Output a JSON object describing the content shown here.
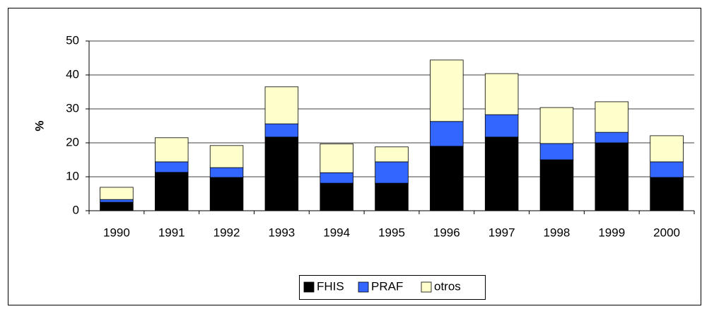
{
  "chart_data": {
    "type": "bar",
    "stacked": true,
    "y_label": "%",
    "categories": [
      "1990",
      "1991",
      "1992",
      "1993",
      "1994",
      "1995",
      "1996",
      "1997",
      "1998",
      "1999",
      "2000"
    ],
    "series": [
      {
        "name": "FHIS",
        "color": "#000000",
        "values": [
          2.5,
          11.3,
          9.8,
          21.7,
          8.1,
          8.1,
          19.0,
          21.7,
          15.0,
          20.0,
          9.8
        ]
      },
      {
        "name": "PRAF",
        "color": "#3366ff",
        "values": [
          0.8,
          3.1,
          2.9,
          3.9,
          3.1,
          6.3,
          7.3,
          6.6,
          4.8,
          3.1,
          4.6
        ]
      },
      {
        "name": "otros",
        "color": "#ffffcc",
        "values": [
          3.6,
          7.1,
          6.5,
          10.9,
          8.5,
          4.4,
          18.1,
          12.1,
          10.6,
          9.0,
          7.7
        ]
      }
    ],
    "ylim": [
      0,
      50
    ],
    "yticks": [
      0,
      10,
      20,
      30,
      40,
      50
    ],
    "grid": true,
    "legend": "bottom"
  }
}
